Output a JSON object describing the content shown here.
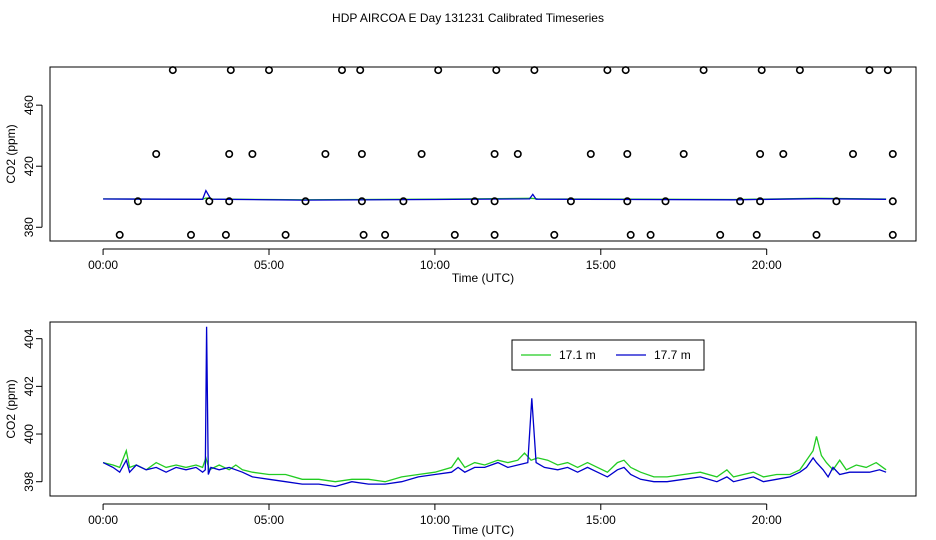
{
  "title": "HDP AIRCOA E  Day 131231  Calibrated Timeseries",
  "colors": {
    "green": "#22cc22",
    "blue": "#0000cc",
    "marker": "#000000"
  },
  "chart_data": [
    {
      "type": "scatter+line",
      "xlabel": "Time (UTC)",
      "ylabel": "CO2 (ppm)",
      "xlim": [
        -1.6,
        24.5
      ],
      "ylim": [
        371,
        485
      ],
      "x_ticks": [
        0,
        5,
        10,
        15,
        20
      ],
      "x_tick_labels": [
        "00:00",
        "05:00",
        "10:00",
        "15:00",
        "20:00"
      ],
      "y_ticks": [
        380,
        420,
        460
      ],
      "y_tick_labels": [
        "380",
        "420",
        "460"
      ],
      "markers": [
        {
          "x": 0.5,
          "y": 375
        },
        {
          "x": 2.65,
          "y": 375
        },
        {
          "x": 3.7,
          "y": 375
        },
        {
          "x": 5.5,
          "y": 375
        },
        {
          "x": 7.85,
          "y": 375
        },
        {
          "x": 8.5,
          "y": 375
        },
        {
          "x": 10.6,
          "y": 375
        },
        {
          "x": 11.8,
          "y": 375
        },
        {
          "x": 13.6,
          "y": 375
        },
        {
          "x": 15.9,
          "y": 375
        },
        {
          "x": 16.5,
          "y": 375
        },
        {
          "x": 18.6,
          "y": 375
        },
        {
          "x": 19.7,
          "y": 375
        },
        {
          "x": 21.5,
          "y": 375
        },
        {
          "x": 23.8,
          "y": 375
        },
        {
          "x": 1.05,
          "y": 397
        },
        {
          "x": 3.2,
          "y": 397
        },
        {
          "x": 3.8,
          "y": 397
        },
        {
          "x": 6.1,
          "y": 397
        },
        {
          "x": 7.8,
          "y": 397
        },
        {
          "x": 9.05,
          "y": 397
        },
        {
          "x": 11.2,
          "y": 397
        },
        {
          "x": 11.8,
          "y": 397
        },
        {
          "x": 14.1,
          "y": 397
        },
        {
          "x": 15.8,
          "y": 397
        },
        {
          "x": 16.95,
          "y": 397
        },
        {
          "x": 19.2,
          "y": 397
        },
        {
          "x": 19.8,
          "y": 397
        },
        {
          "x": 22.1,
          "y": 397
        },
        {
          "x": 23.8,
          "y": 397
        },
        {
          "x": 1.6,
          "y": 428
        },
        {
          "x": 3.8,
          "y": 428
        },
        {
          "x": 4.5,
          "y": 428
        },
        {
          "x": 6.7,
          "y": 428
        },
        {
          "x": 7.8,
          "y": 428
        },
        {
          "x": 9.6,
          "y": 428
        },
        {
          "x": 11.8,
          "y": 428
        },
        {
          "x": 12.5,
          "y": 428
        },
        {
          "x": 14.7,
          "y": 428
        },
        {
          "x": 15.8,
          "y": 428
        },
        {
          "x": 17.5,
          "y": 428
        },
        {
          "x": 19.8,
          "y": 428
        },
        {
          "x": 20.5,
          "y": 428
        },
        {
          "x": 22.6,
          "y": 428
        },
        {
          "x": 23.8,
          "y": 428
        },
        {
          "x": 2.1,
          "y": 483
        },
        {
          "x": 3.85,
          "y": 483
        },
        {
          "x": 5.0,
          "y": 483
        },
        {
          "x": 7.2,
          "y": 483
        },
        {
          "x": 7.75,
          "y": 483
        },
        {
          "x": 10.1,
          "y": 483
        },
        {
          "x": 11.85,
          "y": 483
        },
        {
          "x": 13.0,
          "y": 483
        },
        {
          "x": 15.2,
          "y": 483
        },
        {
          "x": 15.75,
          "y": 483
        },
        {
          "x": 18.1,
          "y": 483
        },
        {
          "x": 19.85,
          "y": 483
        },
        {
          "x": 21.0,
          "y": 483
        },
        {
          "x": 23.1,
          "y": 483
        },
        {
          "x": 23.65,
          "y": 483
        }
      ],
      "series": [
        {
          "color": "green",
          "points": [
            [
              0,
              398.6
            ],
            [
              3.0,
              398.4
            ],
            [
              3.1,
              399.2
            ],
            [
              3.3,
              398.5
            ],
            [
              6.0,
              398.0
            ],
            [
              10.0,
              398.4
            ],
            [
              12.9,
              399.0
            ],
            [
              13.1,
              398.6
            ],
            [
              19.0,
              398.2
            ],
            [
              21.5,
              399.0
            ],
            [
              23.6,
              398.5
            ]
          ]
        },
        {
          "color": "blue",
          "points": [
            [
              0,
              398.5
            ],
            [
              3.0,
              398.3
            ],
            [
              3.1,
              404.0
            ],
            [
              3.25,
              398.4
            ],
            [
              6.0,
              397.8
            ],
            [
              10.0,
              398.2
            ],
            [
              12.85,
              398.6
            ],
            [
              12.95,
              401.5
            ],
            [
              13.05,
              398.4
            ],
            [
              19.0,
              398.0
            ],
            [
              21.5,
              398.7
            ],
            [
              23.6,
              398.3
            ]
          ]
        }
      ]
    },
    {
      "type": "line",
      "xlabel": "Time (UTC)",
      "ylabel": "CO2 (ppm)",
      "xlim": [
        -1.6,
        24.5
      ],
      "ylim": [
        397.4,
        404.7
      ],
      "x_ticks": [
        0,
        5,
        10,
        15,
        20
      ],
      "x_tick_labels": [
        "00:00",
        "05:00",
        "10:00",
        "15:00",
        "20:00"
      ],
      "y_ticks": [
        398,
        400,
        402,
        404
      ],
      "y_tick_labels": [
        "398",
        "400",
        "402",
        "404"
      ],
      "legend": {
        "position": "top-right"
      },
      "series": [
        {
          "name": "17.1 m",
          "color": "green",
          "points": [
            [
              0.0,
              398.8
            ],
            [
              0.3,
              398.7
            ],
            [
              0.5,
              398.6
            ],
            [
              0.7,
              399.3
            ],
            [
              0.8,
              398.6
            ],
            [
              1.0,
              398.7
            ],
            [
              1.3,
              398.5
            ],
            [
              1.6,
              398.8
            ],
            [
              1.9,
              398.6
            ],
            [
              2.2,
              398.7
            ],
            [
              2.5,
              398.6
            ],
            [
              2.8,
              398.7
            ],
            [
              3.0,
              398.6
            ],
            [
              3.1,
              399.0
            ],
            [
              3.2,
              398.5
            ],
            [
              3.5,
              398.7
            ],
            [
              3.8,
              398.5
            ],
            [
              4.0,
              398.7
            ],
            [
              4.2,
              398.5
            ],
            [
              4.5,
              398.4
            ],
            [
              5.0,
              398.3
            ],
            [
              5.5,
              398.3
            ],
            [
              6.0,
              398.1
            ],
            [
              6.5,
              398.1
            ],
            [
              7.0,
              398.0
            ],
            [
              7.5,
              398.1
            ],
            [
              8.0,
              398.1
            ],
            [
              8.5,
              398.0
            ],
            [
              9.0,
              398.2
            ],
            [
              9.5,
              398.3
            ],
            [
              10.0,
              398.4
            ],
            [
              10.5,
              398.6
            ],
            [
              10.7,
              399.0
            ],
            [
              10.9,
              398.6
            ],
            [
              11.2,
              398.8
            ],
            [
              11.5,
              398.7
            ],
            [
              11.9,
              398.9
            ],
            [
              12.2,
              398.8
            ],
            [
              12.5,
              398.9
            ],
            [
              12.7,
              399.2
            ],
            [
              12.9,
              398.9
            ],
            [
              13.1,
              399.0
            ],
            [
              13.4,
              398.9
            ],
            [
              13.7,
              398.7
            ],
            [
              14.0,
              398.8
            ],
            [
              14.3,
              398.6
            ],
            [
              14.6,
              398.8
            ],
            [
              14.9,
              398.6
            ],
            [
              15.2,
              398.4
            ],
            [
              15.5,
              398.8
            ],
            [
              15.7,
              398.9
            ],
            [
              15.9,
              398.6
            ],
            [
              16.2,
              398.4
            ],
            [
              16.6,
              398.2
            ],
            [
              17.0,
              398.2
            ],
            [
              17.5,
              398.3
            ],
            [
              18.0,
              398.4
            ],
            [
              18.5,
              398.2
            ],
            [
              18.8,
              398.5
            ],
            [
              19.0,
              398.2
            ],
            [
              19.3,
              398.3
            ],
            [
              19.6,
              398.4
            ],
            [
              19.9,
              398.2
            ],
            [
              20.3,
              398.3
            ],
            [
              20.7,
              398.3
            ],
            [
              21.0,
              398.5
            ],
            [
              21.2,
              398.9
            ],
            [
              21.4,
              399.3
            ],
            [
              21.5,
              399.9
            ],
            [
              21.65,
              399.1
            ],
            [
              21.8,
              398.8
            ],
            [
              22.0,
              398.5
            ],
            [
              22.2,
              398.9
            ],
            [
              22.4,
              398.5
            ],
            [
              22.7,
              398.7
            ],
            [
              23.0,
              398.6
            ],
            [
              23.3,
              398.8
            ],
            [
              23.6,
              398.5
            ]
          ]
        },
        {
          "name": "17.7 m",
          "color": "blue",
          "points": [
            [
              0.0,
              398.8
            ],
            [
              0.3,
              398.6
            ],
            [
              0.5,
              398.4
            ],
            [
              0.7,
              398.9
            ],
            [
              0.8,
              398.4
            ],
            [
              1.0,
              398.7
            ],
            [
              1.3,
              398.5
            ],
            [
              1.6,
              398.6
            ],
            [
              1.9,
              398.4
            ],
            [
              2.2,
              398.6
            ],
            [
              2.5,
              398.5
            ],
            [
              2.8,
              398.6
            ],
            [
              3.0,
              398.4
            ],
            [
              3.08,
              398.5
            ],
            [
              3.12,
              404.5
            ],
            [
              3.17,
              398.3
            ],
            [
              3.25,
              398.6
            ],
            [
              3.5,
              398.5
            ],
            [
              3.8,
              398.6
            ],
            [
              4.0,
              398.5
            ],
            [
              4.2,
              398.4
            ],
            [
              4.5,
              398.2
            ],
            [
              5.0,
              398.1
            ],
            [
              5.5,
              398.0
            ],
            [
              6.0,
              397.9
            ],
            [
              6.5,
              397.9
            ],
            [
              7.0,
              397.8
            ],
            [
              7.5,
              398.0
            ],
            [
              8.0,
              397.9
            ],
            [
              8.5,
              397.9
            ],
            [
              9.0,
              398.0
            ],
            [
              9.5,
              398.2
            ],
            [
              10.0,
              398.3
            ],
            [
              10.5,
              398.4
            ],
            [
              10.7,
              398.6
            ],
            [
              10.9,
              398.4
            ],
            [
              11.2,
              398.6
            ],
            [
              11.5,
              398.6
            ],
            [
              11.9,
              398.8
            ],
            [
              12.2,
              398.6
            ],
            [
              12.5,
              398.7
            ],
            [
              12.8,
              398.8
            ],
            [
              12.92,
              401.5
            ],
            [
              13.05,
              398.8
            ],
            [
              13.3,
              398.6
            ],
            [
              13.7,
              398.5
            ],
            [
              14.0,
              398.6
            ],
            [
              14.3,
              398.4
            ],
            [
              14.6,
              398.6
            ],
            [
              14.9,
              398.4
            ],
            [
              15.2,
              398.2
            ],
            [
              15.5,
              398.5
            ],
            [
              15.7,
              398.6
            ],
            [
              15.9,
              398.3
            ],
            [
              16.2,
              398.1
            ],
            [
              16.6,
              398.0
            ],
            [
              17.0,
              398.0
            ],
            [
              17.5,
              398.1
            ],
            [
              18.0,
              398.2
            ],
            [
              18.5,
              398.0
            ],
            [
              18.8,
              398.2
            ],
            [
              19.0,
              398.0
            ],
            [
              19.3,
              398.1
            ],
            [
              19.6,
              398.2
            ],
            [
              19.9,
              398.0
            ],
            [
              20.3,
              398.1
            ],
            [
              20.7,
              398.2
            ],
            [
              21.0,
              398.4
            ],
            [
              21.2,
              398.6
            ],
            [
              21.4,
              399.0
            ],
            [
              21.5,
              398.8
            ],
            [
              21.7,
              398.5
            ],
            [
              21.85,
              398.2
            ],
            [
              22.0,
              398.6
            ],
            [
              22.2,
              398.3
            ],
            [
              22.5,
              398.4
            ],
            [
              22.8,
              398.4
            ],
            [
              23.1,
              398.4
            ],
            [
              23.4,
              398.5
            ],
            [
              23.6,
              398.4
            ]
          ]
        }
      ]
    }
  ]
}
